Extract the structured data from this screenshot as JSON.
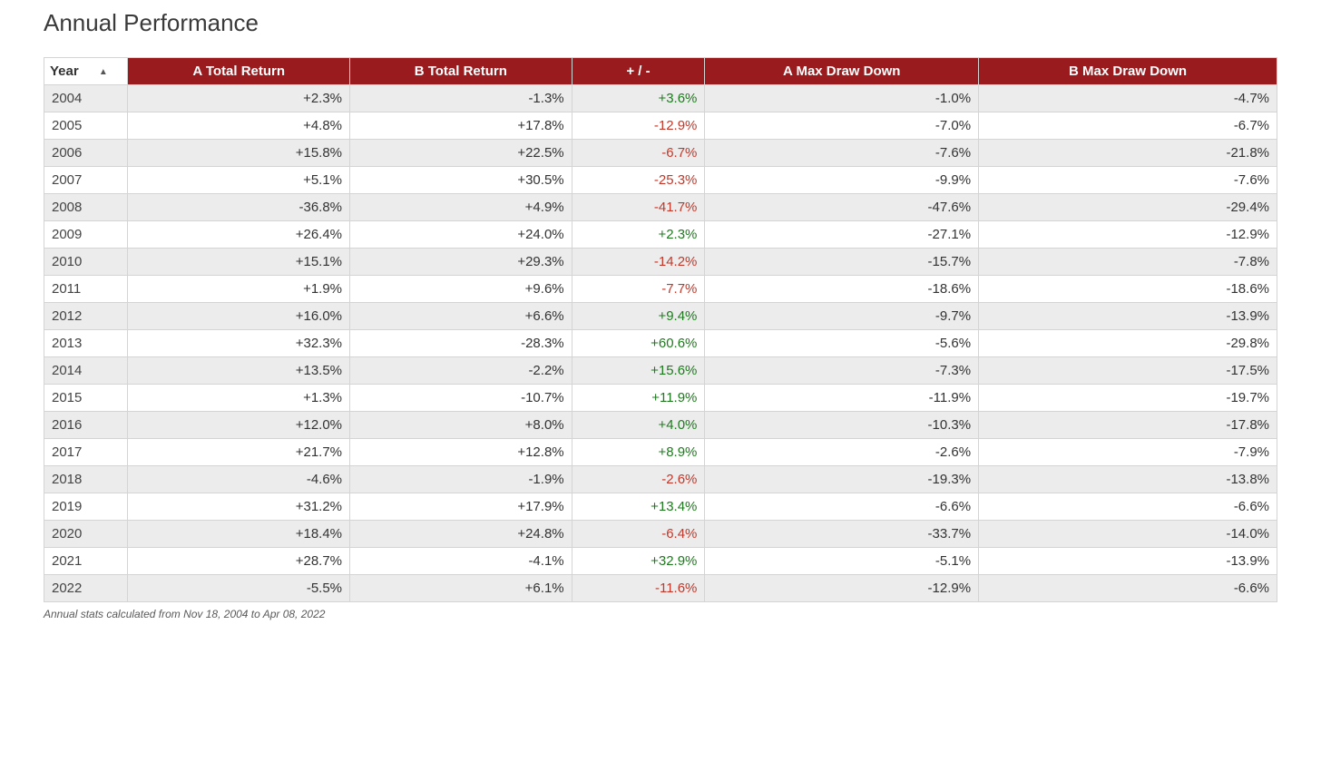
{
  "title": "Annual Performance",
  "footnote": "Annual stats calculated from Nov 18, 2004 to Apr 08, 2022",
  "colors": {
    "header_bg": "#9a1b1e",
    "header_text": "#ffffff",
    "row_alt_bg": "#ececec",
    "row_bg": "#ffffff",
    "border": "#d4d4d4",
    "positive": "#1f7a1f",
    "negative": "#c0392b",
    "text": "#333333"
  },
  "table": {
    "columns": [
      {
        "key": "year",
        "label": "Year",
        "sortable": true,
        "sorted": "asc"
      },
      {
        "key": "a_ret",
        "label": "A Total Return",
        "sortable": true
      },
      {
        "key": "b_ret",
        "label": "B Total Return",
        "sortable": true
      },
      {
        "key": "diff",
        "label": "+ / -",
        "sortable": true,
        "colored": true
      },
      {
        "key": "a_mdd",
        "label": "A Max Draw Down",
        "sortable": true
      },
      {
        "key": "b_mdd",
        "label": "B Max Draw Down",
        "sortable": true
      }
    ],
    "rows": [
      {
        "year": "2004",
        "a_ret": "+2.3%",
        "b_ret": "-1.3%",
        "diff": "+3.6%",
        "a_mdd": "-1.0%",
        "b_mdd": "-4.7%"
      },
      {
        "year": "2005",
        "a_ret": "+4.8%",
        "b_ret": "+17.8%",
        "diff": "-12.9%",
        "a_mdd": "-7.0%",
        "b_mdd": "-6.7%"
      },
      {
        "year": "2006",
        "a_ret": "+15.8%",
        "b_ret": "+22.5%",
        "diff": "-6.7%",
        "a_mdd": "-7.6%",
        "b_mdd": "-21.8%"
      },
      {
        "year": "2007",
        "a_ret": "+5.1%",
        "b_ret": "+30.5%",
        "diff": "-25.3%",
        "a_mdd": "-9.9%",
        "b_mdd": "-7.6%"
      },
      {
        "year": "2008",
        "a_ret": "-36.8%",
        "b_ret": "+4.9%",
        "diff": "-41.7%",
        "a_mdd": "-47.6%",
        "b_mdd": "-29.4%"
      },
      {
        "year": "2009",
        "a_ret": "+26.4%",
        "b_ret": "+24.0%",
        "diff": "+2.3%",
        "a_mdd": "-27.1%",
        "b_mdd": "-12.9%"
      },
      {
        "year": "2010",
        "a_ret": "+15.1%",
        "b_ret": "+29.3%",
        "diff": "-14.2%",
        "a_mdd": "-15.7%",
        "b_mdd": "-7.8%"
      },
      {
        "year": "2011",
        "a_ret": "+1.9%",
        "b_ret": "+9.6%",
        "diff": "-7.7%",
        "a_mdd": "-18.6%",
        "b_mdd": "-18.6%"
      },
      {
        "year": "2012",
        "a_ret": "+16.0%",
        "b_ret": "+6.6%",
        "diff": "+9.4%",
        "a_mdd": "-9.7%",
        "b_mdd": "-13.9%"
      },
      {
        "year": "2013",
        "a_ret": "+32.3%",
        "b_ret": "-28.3%",
        "diff": "+60.6%",
        "a_mdd": "-5.6%",
        "b_mdd": "-29.8%"
      },
      {
        "year": "2014",
        "a_ret": "+13.5%",
        "b_ret": "-2.2%",
        "diff": "+15.6%",
        "a_mdd": "-7.3%",
        "b_mdd": "-17.5%"
      },
      {
        "year": "2015",
        "a_ret": "+1.3%",
        "b_ret": "-10.7%",
        "diff": "+11.9%",
        "a_mdd": "-11.9%",
        "b_mdd": "-19.7%"
      },
      {
        "year": "2016",
        "a_ret": "+12.0%",
        "b_ret": "+8.0%",
        "diff": "+4.0%",
        "a_mdd": "-10.3%",
        "b_mdd": "-17.8%"
      },
      {
        "year": "2017",
        "a_ret": "+21.7%",
        "b_ret": "+12.8%",
        "diff": "+8.9%",
        "a_mdd": "-2.6%",
        "b_mdd": "-7.9%"
      },
      {
        "year": "2018",
        "a_ret": "-4.6%",
        "b_ret": "-1.9%",
        "diff": "-2.6%",
        "a_mdd": "-19.3%",
        "b_mdd": "-13.8%"
      },
      {
        "year": "2019",
        "a_ret": "+31.2%",
        "b_ret": "+17.9%",
        "diff": "+13.4%",
        "a_mdd": "-6.6%",
        "b_mdd": "-6.6%"
      },
      {
        "year": "2020",
        "a_ret": "+18.4%",
        "b_ret": "+24.8%",
        "diff": "-6.4%",
        "a_mdd": "-33.7%",
        "b_mdd": "-14.0%"
      },
      {
        "year": "2021",
        "a_ret": "+28.7%",
        "b_ret": "-4.1%",
        "diff": "+32.9%",
        "a_mdd": "-5.1%",
        "b_mdd": "-13.9%"
      },
      {
        "year": "2022",
        "a_ret": "-5.5%",
        "b_ret": "+6.1%",
        "diff": "-11.6%",
        "a_mdd": "-12.9%",
        "b_mdd": "-6.6%"
      }
    ]
  }
}
